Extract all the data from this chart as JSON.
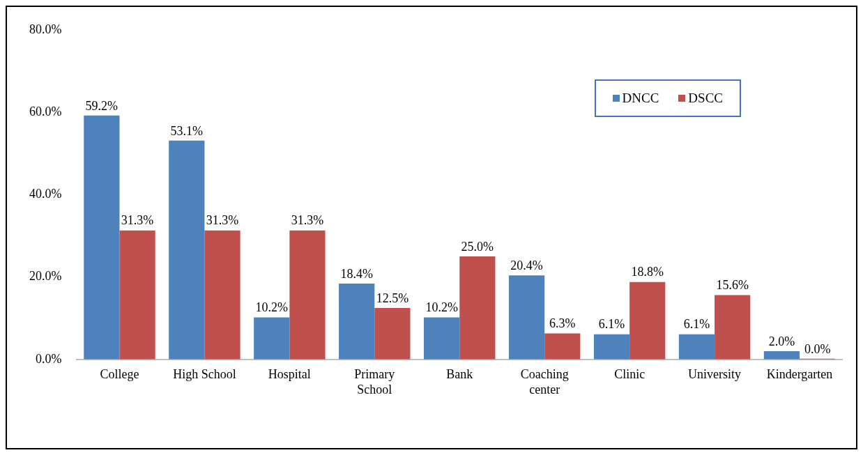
{
  "chart_data": {
    "type": "bar",
    "categories": [
      "College",
      "High School",
      "Hospital",
      "Primary School",
      "Bank",
      "Coaching center",
      "Clinic",
      "University",
      "Kindergarten"
    ],
    "series": [
      {
        "name": "DNCC",
        "color": "#4f81bd",
        "values": [
          59.2,
          53.1,
          10.2,
          18.4,
          10.2,
          20.4,
          6.1,
          6.1,
          2.0
        ],
        "value_labels": [
          "59.2%",
          "53.1%",
          "10.2%",
          "18.4%",
          "10.2%",
          "20.4%",
          "6.1%",
          "6.1%",
          "2.0%"
        ]
      },
      {
        "name": "DSCC",
        "color": "#c0504d",
        "values": [
          31.3,
          31.3,
          31.3,
          12.5,
          25.0,
          6.3,
          18.8,
          15.6,
          0.0
        ],
        "value_labels": [
          "31.3%",
          "31.3%",
          "31.3%",
          "12.5%",
          "25.0%",
          "6.3%",
          "18.8%",
          "15.6%",
          "0.0%"
        ]
      }
    ],
    "ylim": [
      0,
      80
    ],
    "yticks": [
      {
        "value": 0,
        "label": "0.0%"
      },
      {
        "value": 20,
        "label": "20.0%"
      },
      {
        "value": 40,
        "label": "40.0%"
      },
      {
        "value": 60,
        "label": "60.0%"
      },
      {
        "value": 80,
        "label": "80.0%"
      }
    ],
    "grid": false,
    "legend": "top right"
  }
}
